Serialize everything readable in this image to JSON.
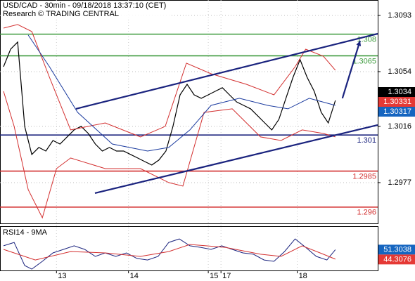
{
  "chart_data": {
    "type": "line",
    "title": "USD/CAD - 30min - 09/18/2018 13:37:10 (CET)",
    "subtitle": "Research © TRADING CENTRAL",
    "xlim": [
      -0.5,
      53
    ],
    "xticks": [
      {
        "value": 7.5,
        "label": "13"
      },
      {
        "value": 17.7,
        "label": "14"
      },
      {
        "value": 29,
        "label": "15"
      },
      {
        "value": 30.8,
        "label": "17"
      },
      {
        "value": 41.6,
        "label": "18"
      }
    ],
    "ylim": [
      1.29487,
      1.31037
    ],
    "yticks": [
      1.3093,
      1.3054,
      1.3016,
      1.2977
    ],
    "grid": true,
    "series": [
      {
        "color": "#000000",
        "x": [
          0,
          1,
          2,
          3,
          4,
          5,
          6,
          7,
          8,
          9,
          10,
          11,
          12,
          13,
          14,
          15,
          16,
          17,
          18,
          19,
          20,
          21,
          22,
          23,
          24,
          25,
          26,
          27,
          28,
          29,
          30,
          31,
          32,
          33,
          34,
          35,
          36,
          37,
          38,
          39,
          40,
          41,
          42,
          43,
          44,
          45,
          46,
          47
        ],
        "values": [
          1.30574,
          1.30696,
          1.30745,
          1.3016,
          1.29965,
          1.30014,
          1.29989,
          1.30062,
          1.30038,
          1.30087,
          1.30136,
          1.3016,
          1.30111,
          1.30038,
          1.29989,
          1.30014,
          1.29989,
          1.29989,
          1.29965,
          1.29941,
          1.29916,
          1.29892,
          1.29926,
          1.29989,
          1.3016,
          1.30379,
          1.30452,
          1.30379,
          1.30355,
          1.30379,
          1.30404,
          1.30428,
          1.30379,
          1.3033,
          1.30306,
          1.30282,
          1.30233,
          1.30184,
          1.30136,
          1.30209,
          1.30355,
          1.30501,
          1.30623,
          1.30501,
          1.30404,
          1.30257,
          1.30184,
          1.3034
        ]
      },
      {
        "color": "#d32f2f",
        "x": [
          0,
          2,
          4,
          6.5,
          9.5,
          14.4,
          19.4,
          22.9,
          25.9,
          29.4,
          34.4,
          38.3,
          41.3,
          42.8,
          45.3,
          47
        ],
        "values": [
          1.30842,
          1.30867,
          1.30818,
          1.30501,
          1.30136,
          1.30184,
          1.30087,
          1.3016,
          1.30599,
          1.30525,
          1.30452,
          1.30379,
          1.30574,
          1.30696,
          1.30647,
          1.3055
        ]
      },
      {
        "color": "#d32f2f",
        "x": [
          0,
          1.5,
          3.5,
          5.5,
          7.5,
          9.5,
          14.4,
          19.4,
          23.4,
          25.4,
          28.4,
          32.4,
          36.4,
          39.3,
          42.3,
          45.3,
          47
        ],
        "values": [
          1.30404,
          1.3016,
          1.29721,
          1.29526,
          1.29867,
          1.29941,
          1.29867,
          1.29867,
          1.2977,
          1.29746,
          1.30257,
          1.30282,
          1.30087,
          1.30062,
          1.30136,
          1.30111,
          1.30087
        ]
      },
      {
        "color": "#1a3a9e",
        "x": [
          3.5,
          6.5,
          10.5,
          15.4,
          20.4,
          23.4,
          26.4,
          29.4,
          33.4,
          37.4,
          40.3,
          43.3,
          47
        ],
        "values": [
          1.30794,
          1.30574,
          1.30257,
          1.30038,
          1.29989,
          1.30014,
          1.30136,
          1.30306,
          1.30355,
          1.30306,
          1.30282,
          1.30355,
          1.30306
        ]
      }
    ],
    "levels": [
      {
        "value": 1.308,
        "color": "#3c9a3c"
      },
      {
        "value": 1.3065,
        "color": "#3c9a3c"
      },
      {
        "value": 1.301,
        "color": "#1a237e"
      },
      {
        "value": 1.2985,
        "color": "#d32f2f"
      },
      {
        "value": 1.296,
        "color": "#d32f2f"
      }
    ],
    "trendlines": [
      {
        "color": "#1a237e",
        "x": [
          10.26,
          53
        ],
        "values": [
          1.30282,
          1.30803
        ]
      },
      {
        "color": "#1a237e",
        "x": [
          12.95,
          53
        ],
        "values": [
          1.29697,
          1.3017
        ]
      },
      {
        "color": "#1a237e",
        "x": [
          48,
          50.5
        ],
        "values": [
          1.30355,
          1.30755
        ],
        "arrow": true
      }
    ],
    "price_labels": [
      {
        "value": 1.3034,
        "color": "#000000"
      },
      {
        "value": 1.30331,
        "color": "#e53935"
      },
      {
        "value": 1.30317,
        "color": "#1565c0"
      }
    ],
    "rsi": {
      "title": "RSI14 - 9MA",
      "ylim": [
        36,
        68
      ],
      "series": [
        {
          "color": "#1a237e",
          "x": [
            0,
            1.5,
            3,
            4,
            5.5,
            7,
            8.5,
            10,
            11.5,
            13,
            14.4,
            15.9,
            17.4,
            18.9,
            20.4,
            21.9,
            23.4,
            24.9,
            26.4,
            27.9,
            29.4,
            30.9,
            32.4,
            33.9,
            35.4,
            36.9,
            38.3,
            39.8,
            41.3,
            42.8,
            44.3,
            45.8,
            47
          ],
          "values": [
            54.1,
            56.6,
            39.6,
            37.0,
            42.7,
            48.9,
            51.5,
            54.1,
            51.5,
            46.3,
            48.9,
            46.3,
            48.9,
            44.8,
            43.7,
            46.3,
            56.6,
            59.2,
            54.1,
            53.0,
            51.5,
            54.1,
            51.5,
            48.9,
            47.9,
            43.7,
            42.7,
            49.9,
            59.2,
            53.0,
            46.3,
            43.7,
            51.3
          ]
        },
        {
          "color": "#d32f2f",
          "x": [
            0,
            4.5,
            9.5,
            14.4,
            19.4,
            23.4,
            26.4,
            31.4,
            36.4,
            39.3,
            42.3,
            45.3,
            47
          ],
          "values": [
            51.5,
            43.7,
            49.9,
            48.9,
            46.3,
            49.9,
            55.1,
            53.0,
            47.9,
            46.3,
            54.1,
            47.9,
            44.3
          ]
        }
      ],
      "price_labels": [
        {
          "value": 51.3038,
          "color": "#1565c0"
        },
        {
          "value": 44.3076,
          "color": "#e53935"
        }
      ]
    }
  }
}
